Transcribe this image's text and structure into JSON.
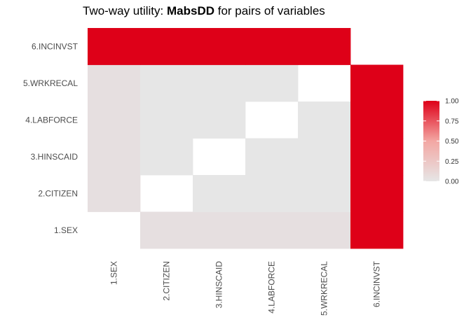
{
  "title": {
    "prefix": "Two-way utility: ",
    "metric": "MabsDD",
    "suffix": " for pairs of variables"
  },
  "colors": {
    "low": "#e6e6e6",
    "high": "#de0018",
    "diagonal": "#ffffff"
  },
  "chart_data": {
    "type": "heatmap",
    "title": "Two-way utility: MabsDD for pairs of variables",
    "x_categories": [
      "1.SEX",
      "2.CITIZEN",
      "3.HINSCAID",
      "4.LABFORCE",
      "5.WRKRECAL",
      "6.INCINVST"
    ],
    "y_categories": [
      "1.SEX",
      "2.CITIZEN",
      "3.HINSCAID",
      "4.LABFORCE",
      "5.WRKRECAL",
      "6.INCINVST"
    ],
    "matrix_note": "values[row y][col x]; null = no tile (diagonal)",
    "values": [
      [
        null,
        0.03,
        0.03,
        0.03,
        0.03,
        1.0
      ],
      [
        0.03,
        null,
        0.0,
        0.0,
        0.0,
        1.0
      ],
      [
        0.03,
        0.0,
        null,
        0.0,
        0.0,
        1.0
      ],
      [
        0.03,
        0.0,
        0.0,
        null,
        0.0,
        1.0
      ],
      [
        0.03,
        0.0,
        0.0,
        0.0,
        null,
        1.0
      ],
      [
        1.0,
        1.0,
        1.0,
        1.0,
        1.0,
        null
      ]
    ],
    "legend": {
      "ticks": [
        "1.00",
        "0.75",
        "0.50",
        "0.25",
        "0.00"
      ],
      "range": [
        0,
        1
      ],
      "position": "right"
    },
    "grid": false,
    "xlabel": "",
    "ylabel": ""
  }
}
